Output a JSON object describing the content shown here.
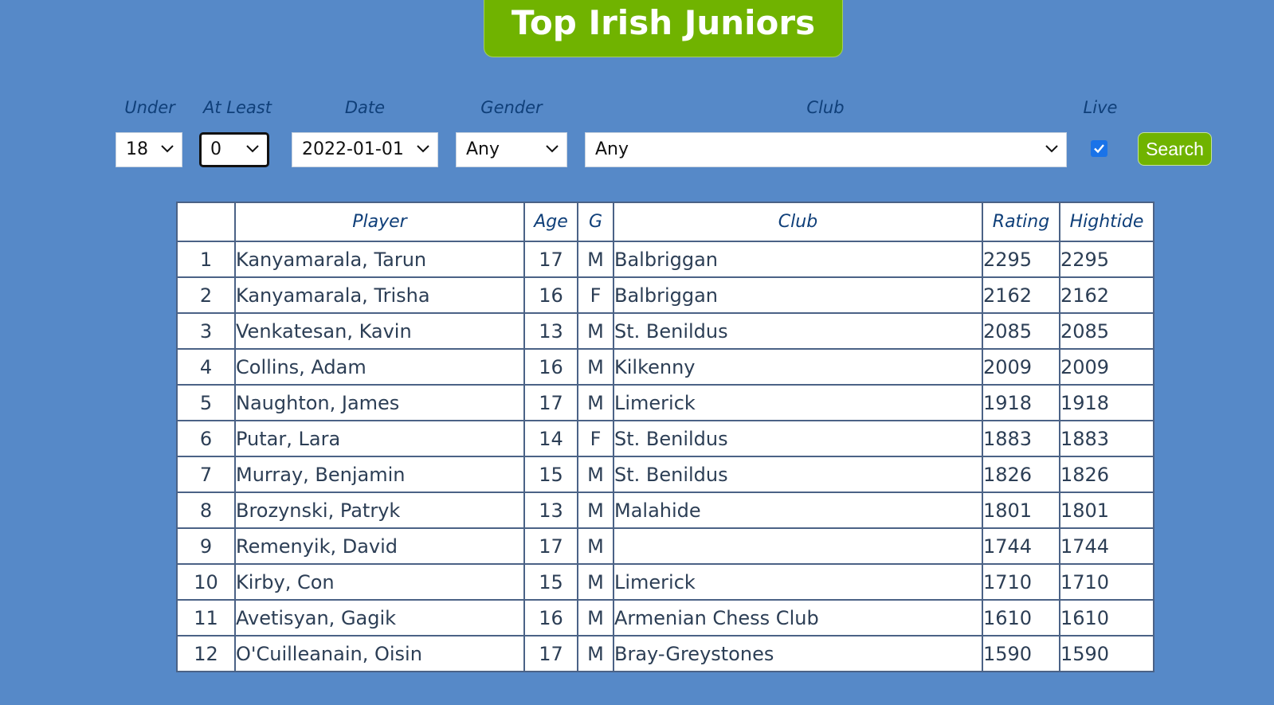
{
  "page": {
    "title": "Top Irish Juniors"
  },
  "filters": {
    "under": {
      "label": "Under",
      "value": "18"
    },
    "at_least": {
      "label": "At Least",
      "value": "0"
    },
    "date": {
      "label": "Date",
      "value": "2022-01-01"
    },
    "gender": {
      "label": "Gender",
      "value": "Any"
    },
    "club": {
      "label": "Club",
      "value": "Any"
    },
    "live": {
      "label": "Live",
      "checked": true
    },
    "search_label": "Search"
  },
  "table": {
    "headers": [
      "",
      "Player",
      "Age",
      "G",
      "Club",
      "Rating",
      "Hightide"
    ],
    "rows": [
      [
        "1",
        "Kanyamarala, Tarun",
        "17",
        "M",
        "Balbriggan",
        "2295",
        "2295"
      ],
      [
        "2",
        "Kanyamarala, Trisha",
        "16",
        "F",
        "Balbriggan",
        "2162",
        "2162"
      ],
      [
        "3",
        "Venkatesan, Kavin",
        "13",
        "M",
        "St. Benildus",
        "2085",
        "2085"
      ],
      [
        "4",
        "Collins, Adam",
        "16",
        "M",
        "Kilkenny",
        "2009",
        "2009"
      ],
      [
        "5",
        "Naughton, James",
        "17",
        "M",
        "Limerick",
        "1918",
        "1918"
      ],
      [
        "6",
        "Putar, Lara",
        "14",
        "F",
        "St. Benildus",
        "1883",
        "1883"
      ],
      [
        "7",
        "Murray, Benjamin",
        "15",
        "M",
        "St. Benildus",
        "1826",
        "1826"
      ],
      [
        "8",
        "Brozynski, Patryk",
        "13",
        "M",
        "Malahide",
        "1801",
        "1801"
      ],
      [
        "9",
        "Remenyik, David",
        "17",
        "M",
        "",
        "1744",
        "1744"
      ],
      [
        "10",
        "Kirby, Con",
        "15",
        "M",
        "Limerick",
        "1710",
        "1710"
      ],
      [
        "11",
        "Avetisyan, Gagik",
        "16",
        "M",
        "Armenian Chess Club",
        "1610",
        "1610"
      ],
      [
        "12",
        "O'Cuilleanain, Oisin",
        "17",
        "M",
        "Bray-Greystones",
        "1590",
        "1590"
      ]
    ]
  },
  "colors": {
    "background": "#5689c8",
    "accent_green": "#70b300",
    "label_blue": "#0f3f79",
    "checkbox_blue": "#1a73e8"
  },
  "icons": {
    "dropdown": "chevron-down-icon",
    "checkmark": "checkmark-icon"
  }
}
